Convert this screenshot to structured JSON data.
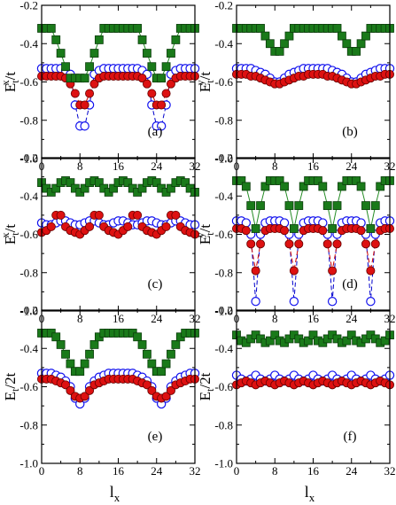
{
  "styles": {
    "green_fill": "#1a7a1a",
    "red_fill": "#dd1111",
    "blue_stroke": "#1111ee",
    "green_line": "#228b22",
    "red_line": "#cc0000",
    "blue_line": "#0000cc"
  },
  "axes": {
    "x_range": [
      0,
      32
    ],
    "y_range": [
      -1.0,
      -0.2
    ],
    "x_ticks": [
      "0",
      "8",
      "16",
      "24",
      "32"
    ],
    "y_ticks": [
      "-0.2",
      "-0.4",
      "-0.6",
      "-0.8",
      "-1.0"
    ],
    "xlabel": "l",
    "xlabel_sub": "x"
  },
  "chart_data": [
    {
      "type": "line",
      "tag": "(a)",
      "ylabel_main": "E",
      "ylabel_sub": "t",
      "ylabel_sup": "x",
      "ylabel_tail": "/t",
      "x": [
        0,
        1,
        2,
        3,
        4,
        5,
        6,
        7,
        8,
        9,
        10,
        11,
        12,
        13,
        14,
        15,
        16,
        17,
        18,
        19,
        20,
        21,
        22,
        23,
        24,
        25,
        26,
        27,
        28,
        29,
        30,
        31,
        32
      ],
      "series": [
        {
          "marker": "square-green",
          "values": [
            -0.32,
            -0.32,
            -0.32,
            -0.38,
            -0.45,
            -0.52,
            -0.58,
            -0.58,
            -0.58,
            -0.58,
            -0.52,
            -0.45,
            -0.38,
            -0.32,
            -0.32,
            -0.32,
            -0.32,
            -0.32,
            -0.32,
            -0.32,
            -0.32,
            -0.38,
            -0.45,
            -0.52,
            -0.58,
            -0.58,
            -0.52,
            -0.45,
            -0.38,
            -0.32,
            -0.32,
            -0.32,
            -0.32
          ]
        },
        {
          "marker": "circle-blue-open",
          "values": [
            -0.53,
            -0.53,
            -0.53,
            -0.53,
            -0.53,
            -0.54,
            -0.56,
            -0.72,
            -0.83,
            -0.83,
            -0.72,
            -0.56,
            -0.54,
            -0.53,
            -0.53,
            -0.53,
            -0.53,
            -0.53,
            -0.53,
            -0.53,
            -0.53,
            -0.54,
            -0.56,
            -0.72,
            -0.83,
            -0.83,
            -0.72,
            -0.56,
            -0.54,
            -0.53,
            -0.53,
            -0.53,
            -0.53
          ]
        },
        {
          "marker": "circle-red",
          "values": [
            -0.57,
            -0.57,
            -0.57,
            -0.57,
            -0.57,
            -0.58,
            -0.61,
            -0.66,
            -0.72,
            -0.72,
            -0.66,
            -0.61,
            -0.58,
            -0.57,
            -0.57,
            -0.57,
            -0.57,
            -0.57,
            -0.57,
            -0.57,
            -0.57,
            -0.58,
            -0.61,
            -0.66,
            -0.72,
            -0.72,
            -0.66,
            -0.61,
            -0.58,
            -0.57,
            -0.57,
            -0.57,
            -0.57
          ]
        }
      ]
    },
    {
      "type": "line",
      "tag": "(b)",
      "ylabel_main": "E",
      "ylabel_sub": "t",
      "ylabel_sup": "y",
      "ylabel_tail": "/t",
      "x": [
        0,
        1,
        2,
        3,
        4,
        5,
        6,
        7,
        8,
        9,
        10,
        11,
        12,
        13,
        14,
        15,
        16,
        17,
        18,
        19,
        20,
        21,
        22,
        23,
        24,
        25,
        26,
        27,
        28,
        29,
        30,
        31,
        32
      ],
      "series": [
        {
          "marker": "square-green",
          "values": [
            -0.32,
            -0.32,
            -0.32,
            -0.32,
            -0.32,
            -0.32,
            -0.36,
            -0.4,
            -0.44,
            -0.44,
            -0.4,
            -0.36,
            -0.32,
            -0.32,
            -0.32,
            -0.32,
            -0.32,
            -0.32,
            -0.32,
            -0.32,
            -0.32,
            -0.32,
            -0.36,
            -0.4,
            -0.44,
            -0.44,
            -0.4,
            -0.36,
            -0.32,
            -0.32,
            -0.32,
            -0.32,
            -0.32
          ]
        },
        {
          "marker": "circle-blue-open",
          "values": [
            -0.53,
            -0.53,
            -0.53,
            -0.53,
            -0.54,
            -0.55,
            -0.56,
            -0.58,
            -0.6,
            -0.6,
            -0.58,
            -0.56,
            -0.55,
            -0.54,
            -0.53,
            -0.53,
            -0.53,
            -0.53,
            -0.53,
            -0.53,
            -0.54,
            -0.55,
            -0.56,
            -0.58,
            -0.6,
            -0.6,
            -0.58,
            -0.56,
            -0.55,
            -0.54,
            -0.53,
            -0.53,
            -0.53
          ]
        },
        {
          "marker": "circle-red",
          "values": [
            -0.56,
            -0.56,
            -0.56,
            -0.57,
            -0.57,
            -0.58,
            -0.59,
            -0.6,
            -0.61,
            -0.61,
            -0.6,
            -0.59,
            -0.58,
            -0.57,
            -0.57,
            -0.56,
            -0.56,
            -0.56,
            -0.56,
            -0.57,
            -0.57,
            -0.58,
            -0.59,
            -0.6,
            -0.61,
            -0.61,
            -0.6,
            -0.59,
            -0.58,
            -0.57,
            -0.57,
            -0.56,
            -0.56
          ]
        }
      ]
    },
    {
      "type": "line",
      "tag": "(c)",
      "ylabel_main": "E",
      "ylabel_sub": "t",
      "ylabel_sup": "x",
      "ylabel_tail": "/t",
      "x": [
        0,
        1,
        2,
        3,
        4,
        5,
        6,
        7,
        8,
        9,
        10,
        11,
        12,
        13,
        14,
        15,
        16,
        17,
        18,
        19,
        20,
        21,
        22,
        23,
        24,
        25,
        26,
        27,
        28,
        29,
        30,
        31,
        32
      ],
      "series": [
        {
          "marker": "square-green",
          "values": [
            -0.33,
            -0.36,
            -0.38,
            -0.36,
            -0.33,
            -0.32,
            -0.33,
            -0.36,
            -0.38,
            -0.36,
            -0.33,
            -0.32,
            -0.33,
            -0.36,
            -0.38,
            -0.36,
            -0.33,
            -0.32,
            -0.33,
            -0.36,
            -0.38,
            -0.36,
            -0.33,
            -0.32,
            -0.33,
            -0.36,
            -0.38,
            -0.36,
            -0.33,
            -0.32,
            -0.33,
            -0.36,
            -0.38
          ]
        },
        {
          "marker": "circle-blue-open",
          "values": [
            -0.54,
            -0.55,
            -0.55,
            -0.54,
            -0.53,
            -0.53,
            -0.54,
            -0.55,
            -0.55,
            -0.54,
            -0.53,
            -0.53,
            -0.54,
            -0.55,
            -0.55,
            -0.54,
            -0.53,
            -0.53,
            -0.54,
            -0.55,
            -0.55,
            -0.54,
            -0.53,
            -0.53,
            -0.54,
            -0.55,
            -0.55,
            -0.54,
            -0.53,
            -0.53,
            -0.54,
            -0.55,
            -0.55
          ]
        },
        {
          "marker": "circle-red",
          "values": [
            -0.59,
            -0.58,
            -0.56,
            -0.5,
            -0.5,
            -0.56,
            -0.58,
            -0.59,
            -0.6,
            -0.58,
            -0.56,
            -0.5,
            -0.5,
            -0.56,
            -0.58,
            -0.59,
            -0.6,
            -0.58,
            -0.56,
            -0.5,
            -0.5,
            -0.56,
            -0.58,
            -0.59,
            -0.6,
            -0.58,
            -0.56,
            -0.5,
            -0.5,
            -0.56,
            -0.58,
            -0.59,
            -0.6
          ]
        }
      ]
    },
    {
      "type": "line",
      "tag": "(d)",
      "ylabel_main": "E",
      "ylabel_sub": "t",
      "ylabel_sup": "y",
      "ylabel_tail": "/t",
      "x": [
        0,
        1,
        2,
        3,
        4,
        5,
        6,
        7,
        8,
        9,
        10,
        11,
        12,
        13,
        14,
        15,
        16,
        17,
        18,
        19,
        20,
        21,
        22,
        23,
        24,
        25,
        26,
        27,
        28,
        29,
        30,
        31,
        32
      ],
      "series": [
        {
          "marker": "square-green",
          "values": [
            -0.32,
            -0.32,
            -0.35,
            -0.45,
            -0.57,
            -0.45,
            -0.35,
            -0.32,
            -0.32,
            -0.32,
            -0.35,
            -0.45,
            -0.57,
            -0.45,
            -0.35,
            -0.32,
            -0.32,
            -0.32,
            -0.35,
            -0.45,
            -0.57,
            -0.45,
            -0.35,
            -0.32,
            -0.32,
            -0.32,
            -0.35,
            -0.45,
            -0.57,
            -0.45,
            -0.35,
            -0.32,
            -0.32
          ]
        },
        {
          "marker": "circle-blue-open",
          "values": [
            -0.53,
            -0.53,
            -0.54,
            -0.6,
            -0.95,
            -0.6,
            -0.54,
            -0.53,
            -0.53,
            -0.53,
            -0.54,
            -0.6,
            -0.95,
            -0.6,
            -0.54,
            -0.53,
            -0.53,
            -0.53,
            -0.54,
            -0.6,
            -0.95,
            -0.6,
            -0.54,
            -0.53,
            -0.53,
            -0.53,
            -0.54,
            -0.6,
            -0.95,
            -0.6,
            -0.54,
            -0.53,
            -0.53
          ]
        },
        {
          "marker": "circle-red",
          "values": [
            -0.57,
            -0.57,
            -0.58,
            -0.65,
            -0.79,
            -0.65,
            -0.58,
            -0.57,
            -0.57,
            -0.57,
            -0.58,
            -0.65,
            -0.79,
            -0.65,
            -0.58,
            -0.57,
            -0.57,
            -0.57,
            -0.58,
            -0.65,
            -0.79,
            -0.65,
            -0.58,
            -0.57,
            -0.57,
            -0.57,
            -0.58,
            -0.65,
            -0.79,
            -0.65,
            -0.58,
            -0.57,
            -0.57
          ]
        }
      ]
    },
    {
      "type": "line",
      "tag": "(e)",
      "ylabel_main": "E",
      "ylabel_sub": "t",
      "ylabel_sup": "",
      "ylabel_tail": "/2t",
      "x": [
        0,
        1,
        2,
        3,
        4,
        5,
        6,
        7,
        8,
        9,
        10,
        11,
        12,
        13,
        14,
        15,
        16,
        17,
        18,
        19,
        20,
        21,
        22,
        23,
        24,
        25,
        26,
        27,
        28,
        29,
        30,
        31,
        32
      ],
      "series": [
        {
          "marker": "square-green",
          "values": [
            -0.32,
            -0.32,
            -0.32,
            -0.34,
            -0.38,
            -0.43,
            -0.48,
            -0.52,
            -0.52,
            -0.48,
            -0.43,
            -0.38,
            -0.34,
            -0.32,
            -0.32,
            -0.32,
            -0.32,
            -0.32,
            -0.32,
            -0.32,
            -0.34,
            -0.38,
            -0.43,
            -0.48,
            -0.52,
            -0.52,
            -0.48,
            -0.43,
            -0.38,
            -0.34,
            -0.32,
            -0.32,
            -0.32
          ]
        },
        {
          "marker": "circle-blue-open",
          "values": [
            -0.53,
            -0.53,
            -0.53,
            -0.54,
            -0.55,
            -0.57,
            -0.6,
            -0.66,
            -0.69,
            -0.66,
            -0.6,
            -0.57,
            -0.55,
            -0.54,
            -0.53,
            -0.53,
            -0.53,
            -0.53,
            -0.53,
            -0.53,
            -0.54,
            -0.55,
            -0.57,
            -0.6,
            -0.66,
            -0.69,
            -0.66,
            -0.6,
            -0.57,
            -0.55,
            -0.54,
            -0.53,
            -0.53
          ]
        },
        {
          "marker": "circle-red",
          "values": [
            -0.56,
            -0.56,
            -0.56,
            -0.57,
            -0.58,
            -0.59,
            -0.62,
            -0.65,
            -0.66,
            -0.65,
            -0.62,
            -0.59,
            -0.58,
            -0.57,
            -0.56,
            -0.56,
            -0.56,
            -0.56,
            -0.56,
            -0.56,
            -0.57,
            -0.58,
            -0.59,
            -0.62,
            -0.65,
            -0.66,
            -0.65,
            -0.62,
            -0.59,
            -0.58,
            -0.57,
            -0.56,
            -0.56
          ]
        }
      ]
    },
    {
      "type": "line",
      "tag": "(f)",
      "ylabel_main": "E",
      "ylabel_sub": "t",
      "ylabel_sup": "",
      "ylabel_tail": "/2t",
      "x": [
        0,
        1,
        2,
        3,
        4,
        5,
        6,
        7,
        8,
        9,
        10,
        11,
        12,
        13,
        14,
        15,
        16,
        17,
        18,
        19,
        20,
        21,
        22,
        23,
        24,
        25,
        26,
        27,
        28,
        29,
        30,
        31,
        32
      ],
      "series": [
        {
          "marker": "square-green",
          "values": [
            -0.33,
            -0.36,
            -0.37,
            -0.35,
            -0.33,
            -0.35,
            -0.37,
            -0.36,
            -0.33,
            -0.36,
            -0.37,
            -0.35,
            -0.33,
            -0.35,
            -0.37,
            -0.36,
            -0.33,
            -0.36,
            -0.37,
            -0.35,
            -0.33,
            -0.35,
            -0.37,
            -0.36,
            -0.33,
            -0.36,
            -0.37,
            -0.35,
            -0.33,
            -0.35,
            -0.37,
            -0.36,
            -0.33
          ]
        },
        {
          "marker": "circle-blue-open",
          "values": [
            -0.54,
            -0.56,
            -0.57,
            -0.56,
            -0.54,
            -0.56,
            -0.57,
            -0.56,
            -0.54,
            -0.56,
            -0.57,
            -0.56,
            -0.54,
            -0.56,
            -0.57,
            -0.56,
            -0.54,
            -0.56,
            -0.57,
            -0.56,
            -0.54,
            -0.56,
            -0.57,
            -0.56,
            -0.54,
            -0.56,
            -0.57,
            -0.56,
            -0.54,
            -0.56,
            -0.57,
            -0.56,
            -0.54
          ]
        },
        {
          "marker": "circle-red",
          "values": [
            -0.59,
            -0.58,
            -0.57,
            -0.58,
            -0.59,
            -0.58,
            -0.57,
            -0.58,
            -0.59,
            -0.58,
            -0.57,
            -0.58,
            -0.59,
            -0.58,
            -0.57,
            -0.58,
            -0.59,
            -0.58,
            -0.57,
            -0.58,
            -0.59,
            -0.58,
            -0.57,
            -0.58,
            -0.59,
            -0.58,
            -0.57,
            -0.58,
            -0.59,
            -0.58,
            -0.57,
            -0.58,
            -0.59
          ]
        }
      ]
    }
  ]
}
